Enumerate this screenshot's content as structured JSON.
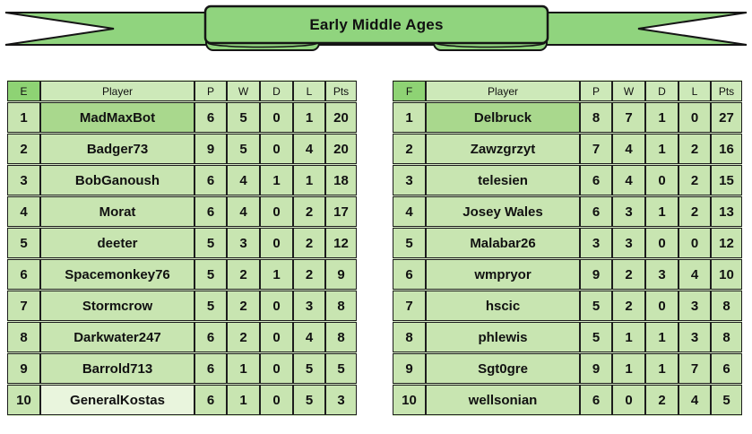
{
  "banner": {
    "title": "Early Middle Ages"
  },
  "colors": {
    "ribbon": "#90d47e",
    "outline": "#151515",
    "group-header-bg": "#8ed374",
    "header-bg": "#cde9b9",
    "cell-bg": "#c8e5b1",
    "highlight-bg": "#a9d88d",
    "faint-bg": "#e9f5dd",
    "row-gap": "#d8edc6",
    "border": "#1d1d1d",
    "text": "#111111"
  },
  "chart_data": [
    {
      "type": "table",
      "group": "E",
      "columns": [
        "Player",
        "P",
        "W",
        "D",
        "L",
        "Pts"
      ],
      "rows": [
        {
          "rank": "1",
          "player": "MadMaxBot",
          "p": "6",
          "w": "5",
          "d": "0",
          "l": "1",
          "pts": "20",
          "player_style": "highlight"
        },
        {
          "rank": "2",
          "player": "Badger73",
          "p": "9",
          "w": "5",
          "d": "0",
          "l": "4",
          "pts": "20",
          "player_style": "normal"
        },
        {
          "rank": "3",
          "player": "BobGanoush",
          "p": "6",
          "w": "4",
          "d": "1",
          "l": "1",
          "pts": "18",
          "player_style": "normal"
        },
        {
          "rank": "4",
          "player": "Morat",
          "p": "6",
          "w": "4",
          "d": "0",
          "l": "2",
          "pts": "17",
          "player_style": "normal"
        },
        {
          "rank": "5",
          "player": "deeter",
          "p": "5",
          "w": "3",
          "d": "0",
          "l": "2",
          "pts": "12",
          "player_style": "normal"
        },
        {
          "rank": "6",
          "player": "Spacemonkey76",
          "p": "5",
          "w": "2",
          "d": "1",
          "l": "2",
          "pts": "9",
          "player_style": "normal"
        },
        {
          "rank": "7",
          "player": "Stormcrow",
          "p": "5",
          "w": "2",
          "d": "0",
          "l": "3",
          "pts": "8",
          "player_style": "normal"
        },
        {
          "rank": "8",
          "player": "Darkwater247",
          "p": "6",
          "w": "2",
          "d": "0",
          "l": "4",
          "pts": "8",
          "player_style": "normal"
        },
        {
          "rank": "9",
          "player": "Barrold713",
          "p": "6",
          "w": "1",
          "d": "0",
          "l": "5",
          "pts": "5",
          "player_style": "normal"
        },
        {
          "rank": "10",
          "player": "GeneralKostas",
          "p": "6",
          "w": "1",
          "d": "0",
          "l": "5",
          "pts": "3",
          "player_style": "faint"
        }
      ]
    },
    {
      "type": "table",
      "group": "F",
      "columns": [
        "Player",
        "P",
        "W",
        "D",
        "L",
        "Pts"
      ],
      "rows": [
        {
          "rank": "1",
          "player": "Delbruck",
          "p": "8",
          "w": "7",
          "d": "1",
          "l": "0",
          "pts": "27",
          "player_style": "highlight"
        },
        {
          "rank": "2",
          "player": "Zawzgrzyt",
          "p": "7",
          "w": "4",
          "d": "1",
          "l": "2",
          "pts": "16",
          "player_style": "normal"
        },
        {
          "rank": "3",
          "player": "telesien",
          "p": "6",
          "w": "4",
          "d": "0",
          "l": "2",
          "pts": "15",
          "player_style": "normal"
        },
        {
          "rank": "4",
          "player": "Josey Wales",
          "p": "6",
          "w": "3",
          "d": "1",
          "l": "2",
          "pts": "13",
          "player_style": "normal"
        },
        {
          "rank": "5",
          "player": "Malabar26",
          "p": "3",
          "w": "3",
          "d": "0",
          "l": "0",
          "pts": "12",
          "player_style": "normal"
        },
        {
          "rank": "6",
          "player": "wmpryor",
          "p": "9",
          "w": "2",
          "d": "3",
          "l": "4",
          "pts": "10",
          "player_style": "normal"
        },
        {
          "rank": "7",
          "player": "hscic",
          "p": "5",
          "w": "2",
          "d": "0",
          "l": "3",
          "pts": "8",
          "player_style": "normal"
        },
        {
          "rank": "8",
          "player": "phlewis",
          "p": "5",
          "w": "1",
          "d": "1",
          "l": "3",
          "pts": "8",
          "player_style": "normal"
        },
        {
          "rank": "9",
          "player": "Sgt0gre",
          "p": "9",
          "w": "1",
          "d": "1",
          "l": "7",
          "pts": "6",
          "player_style": "normal"
        },
        {
          "rank": "10",
          "player": "wellsonian",
          "p": "6",
          "w": "0",
          "d": "2",
          "l": "4",
          "pts": "5",
          "player_style": "normal"
        }
      ]
    }
  ]
}
